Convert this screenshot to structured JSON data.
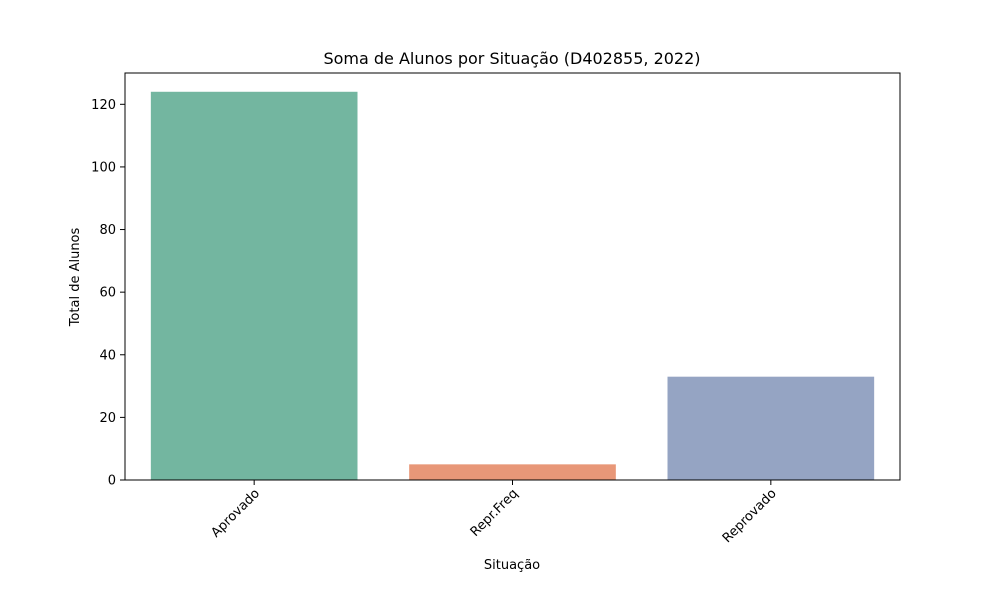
{
  "chart_data": {
    "type": "bar",
    "title": "Soma de Alunos por Situação (D402855, 2022)",
    "xlabel": "Situação",
    "ylabel": "Total de Alunos",
    "categories": [
      "Aprovado",
      "Repr.Freq",
      "Reprovado"
    ],
    "values": [
      124,
      5,
      33
    ],
    "colors": [
      "#73b6a0",
      "#e89778",
      "#95a4c3"
    ],
    "ylim": [
      0,
      130
    ],
    "yticks": [
      0,
      20,
      40,
      60,
      80,
      100,
      120
    ],
    "grid": false,
    "legend": "none"
  }
}
